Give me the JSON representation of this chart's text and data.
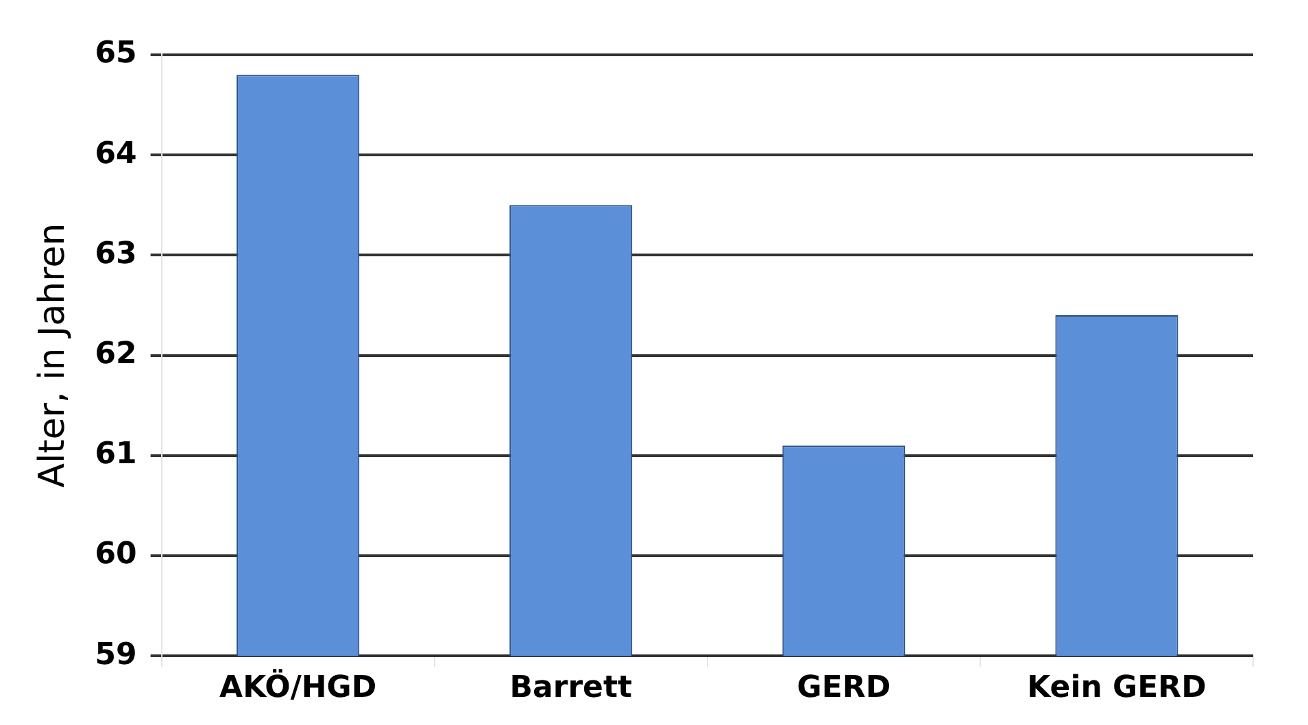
{
  "chart_data": {
    "type": "bar",
    "ylabel": "Alter, in Jahren",
    "categories": [
      "AKÖ/HGD",
      "Barrett",
      "GERD",
      "Kein GERD"
    ],
    "values": [
      64.8,
      63.5,
      61.1,
      62.4
    ],
    "color": "#5b8fd8",
    "ylim": [
      59,
      65
    ],
    "yticks": [
      59,
      60,
      61,
      62,
      63,
      64,
      65
    ],
    "grid": true,
    "legend": false
  }
}
